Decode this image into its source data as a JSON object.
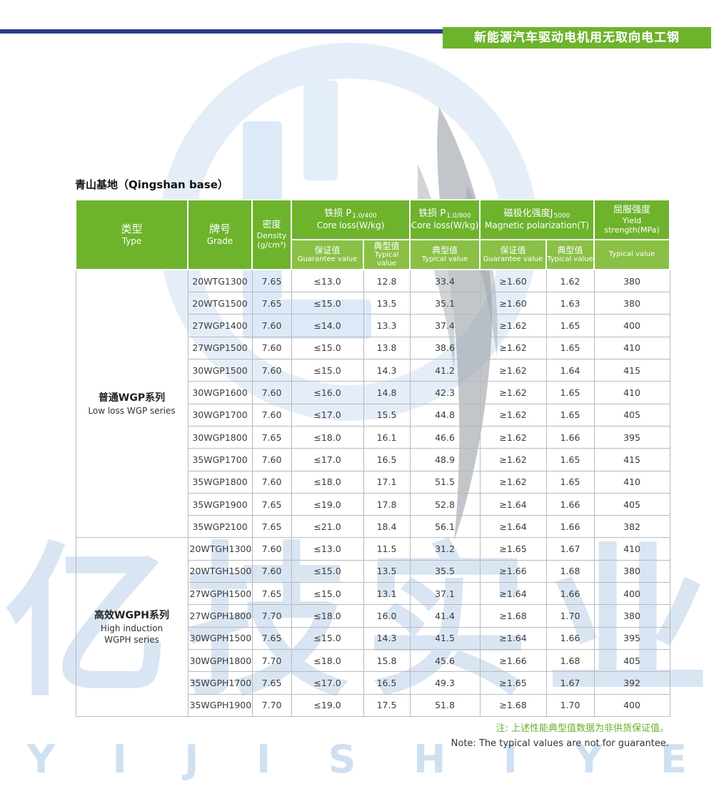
{
  "page": {
    "banner_title": "新能源汽车驱动电机用无取向电工钢",
    "section_title": "青山基地（Qingshan base）",
    "note_cn": "注: 上述性能典型值数据为非供货保证值。",
    "note_en": "Note: The typical values are not for guarantee.",
    "watermark_cn": "亿技实业",
    "watermark_en": "YIJISHIYE"
  },
  "colors": {
    "header_green": "#6db32c",
    "subheader_green": "#8ac046",
    "banner_blue": "#2d3a8c",
    "watermark_blue": "#dce9f6",
    "note_green": "#6aae2c"
  },
  "table": {
    "header": {
      "type": {
        "cn": "类型",
        "en": "Type"
      },
      "grade": {
        "cn": "牌号",
        "en": "Grade"
      },
      "density": {
        "cn": "密度",
        "en": "Density",
        "unit": "(g/cm³)"
      },
      "core_loss_400": {
        "label_cn": "铁损 P",
        "subscript": "1.0/400",
        "label_en": "Core loss(W/kg)"
      },
      "core_loss_800": {
        "label_cn": "铁损 P",
        "subscript": "1.0/800",
        "label_en": "Core loss(W/kg)"
      },
      "polarization": {
        "label_cn": "磁极化强度J",
        "subscript": "5000",
        "label_en": "Magnetic polarization(T)"
      },
      "yield": {
        "cn": "屈服强度",
        "en_line1": "Yield",
        "en_line2": "strength(MPa)"
      },
      "sub": {
        "guarantee_cn": "保证值",
        "guarantee_en": "Guarantee value",
        "typical_cn": "典型值",
        "typical_en": "Typical value",
        "typical_only": "Typical value"
      }
    },
    "groups": [
      {
        "name_cn": "普通WGP系列",
        "name_en": [
          "Low loss WGP series"
        ],
        "rows": [
          [
            "20WTG1300",
            "7.65",
            "≤13.0",
            "12.8",
            "33.4",
            "≥1.60",
            "1.62",
            "380"
          ],
          [
            "20WTG1500",
            "7.65",
            "≤15.0",
            "13.5",
            "35.1",
            "≥1.60",
            "1.63",
            "380"
          ],
          [
            "27WGP1400",
            "7.60",
            "≤14.0",
            "13.3",
            "37.4",
            "≥1.62",
            "1.65",
            "400"
          ],
          [
            "27WGP1500",
            "7.60",
            "≤15.0",
            "13.8",
            "38.6",
            "≥1.62",
            "1.65",
            "410"
          ],
          [
            "30WGP1500",
            "7.60",
            "≤15.0",
            "14.3",
            "41.2",
            "≥1.62",
            "1.64",
            "415"
          ],
          [
            "30WGP1600",
            "7.60",
            "≤16.0",
            "14.8",
            "42.3",
            "≥1.62",
            "1.65",
            "410"
          ],
          [
            "30WGP1700",
            "7.60",
            "≤17.0",
            "15.5",
            "44.8",
            "≥1.62",
            "1.65",
            "405"
          ],
          [
            "30WGP1800",
            "7.65",
            "≤18.0",
            "16.1",
            "46.6",
            "≥1.62",
            "1.66",
            "395"
          ],
          [
            "35WGP1700",
            "7.60",
            "≤17.0",
            "16.5",
            "48.9",
            "≥1.62",
            "1.65",
            "415"
          ],
          [
            "35WGP1800",
            "7.60",
            "≤18.0",
            "17.1",
            "51.5",
            "≥1.62",
            "1.65",
            "410"
          ],
          [
            "35WGP1900",
            "7.65",
            "≤19.0",
            "17.8",
            "52.8",
            "≥1.64",
            "1.66",
            "405"
          ],
          [
            "35WGP2100",
            "7.65",
            "≤21.0",
            "18.4",
            "56.1",
            "≥1.64",
            "1.66",
            "382"
          ]
        ]
      },
      {
        "name_cn": "高效WGPH系列",
        "name_en": [
          "High induction",
          "WGPH series"
        ],
        "rows": [
          [
            "20WTGH1300",
            "7.60",
            "≤13.0",
            "11.5",
            "31.2",
            "≥1.65",
            "1.67",
            "410"
          ],
          [
            "20WTGH1500",
            "7.60",
            "≤15.0",
            "13.5",
            "35.5",
            "≥1.66",
            "1.68",
            "380"
          ],
          [
            "27WGPH1500",
            "7.65",
            "≤15.0",
            "13.1",
            "37.1",
            "≥1.64",
            "1.66",
            "400"
          ],
          [
            "27WGPH1800",
            "7.70",
            "≤18.0",
            "16.0",
            "41.4",
            "≥1.68",
            "1.70",
            "380"
          ],
          [
            "30WGPH1500",
            "7.65",
            "≤15.0",
            "14.3",
            "41.5",
            "≥1.64",
            "1.66",
            "395"
          ],
          [
            "30WGPH1800",
            "7.70",
            "≤18.0",
            "15.8",
            "45.6",
            "≥1.66",
            "1.68",
            "405"
          ],
          [
            "35WGPH1700",
            "7.65",
            "≤17.0",
            "16.5",
            "49.3",
            "≥1.65",
            "1.67",
            "392"
          ],
          [
            "35WGPH1900",
            "7.70",
            "≤19.0",
            "17.5",
            "51.8",
            "≥1.68",
            "1.70",
            "400"
          ]
        ]
      }
    ]
  }
}
